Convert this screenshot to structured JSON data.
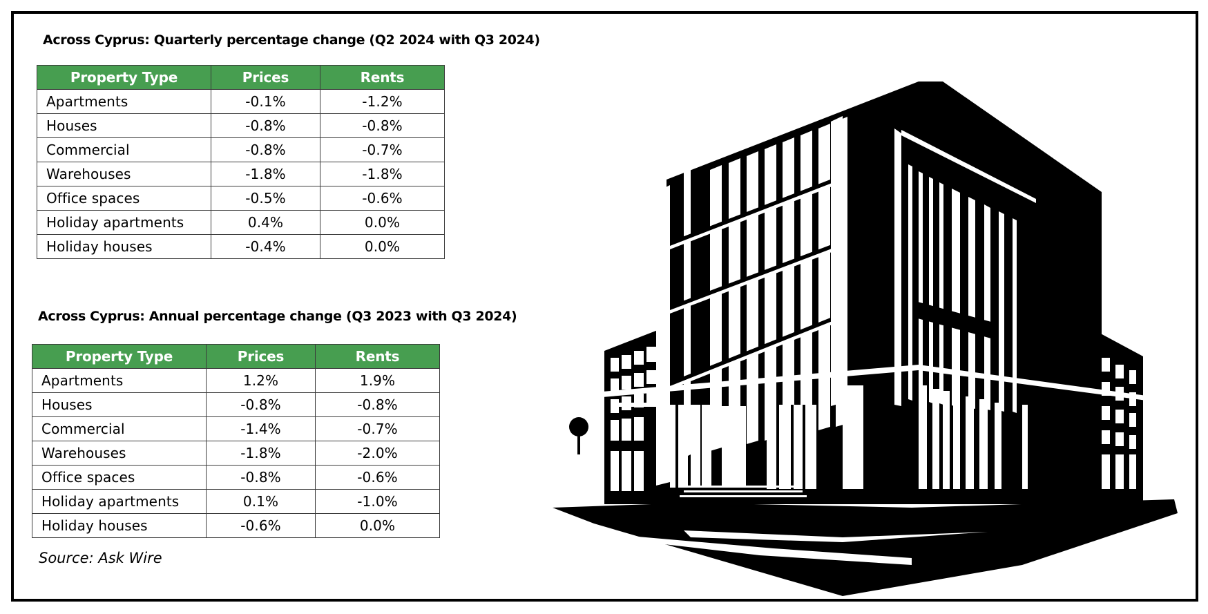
{
  "chart_data": [
    {
      "type": "table",
      "title": "Across Cyprus: Quarterly percentage change (Q2 2024 with Q3 2024)",
      "columns": [
        "Property Type",
        "Prices",
        "Rents"
      ],
      "rows": [
        [
          "Apartments",
          "-0.1%",
          "-1.2%"
        ],
        [
          "Houses",
          "-0.8%",
          "-0.8%"
        ],
        [
          "Commercial",
          "-0.8%",
          "-0.7%"
        ],
        [
          "Warehouses",
          "-1.8%",
          "-1.8%"
        ],
        [
          "Office spaces",
          "-0.5%",
          "-0.6%"
        ],
        [
          "Holiday apartments",
          "0.4%",
          "0.0%"
        ],
        [
          "Holiday houses",
          "-0.4%",
          "0.0%"
        ]
      ]
    },
    {
      "type": "table",
      "title": "Across Cyprus: Annual percentage change (Q3 2023 with Q3 2024)",
      "columns": [
        "Property Type",
        "Prices",
        "Rents"
      ],
      "rows": [
        [
          "Apartments",
          "1.2%",
          "1.9%"
        ],
        [
          "Houses",
          "-0.8%",
          "-0.8%"
        ],
        [
          "Commercial",
          "-1.4%",
          "-0.7%"
        ],
        [
          "Warehouses",
          "-1.8%",
          "-2.0%"
        ],
        [
          "Office spaces",
          "-0.8%",
          "-0.6%"
        ],
        [
          "Holiday apartments",
          "0.1%",
          "-1.0%"
        ],
        [
          "Holiday houses",
          "-0.6%",
          "0.0%"
        ]
      ]
    }
  ],
  "source": "Source: Ask Wire",
  "colors": {
    "header_background": "#479e50",
    "header_text": "#ffffff",
    "border": "#000000"
  },
  "illustration": {
    "icon": "office-building-icon"
  }
}
